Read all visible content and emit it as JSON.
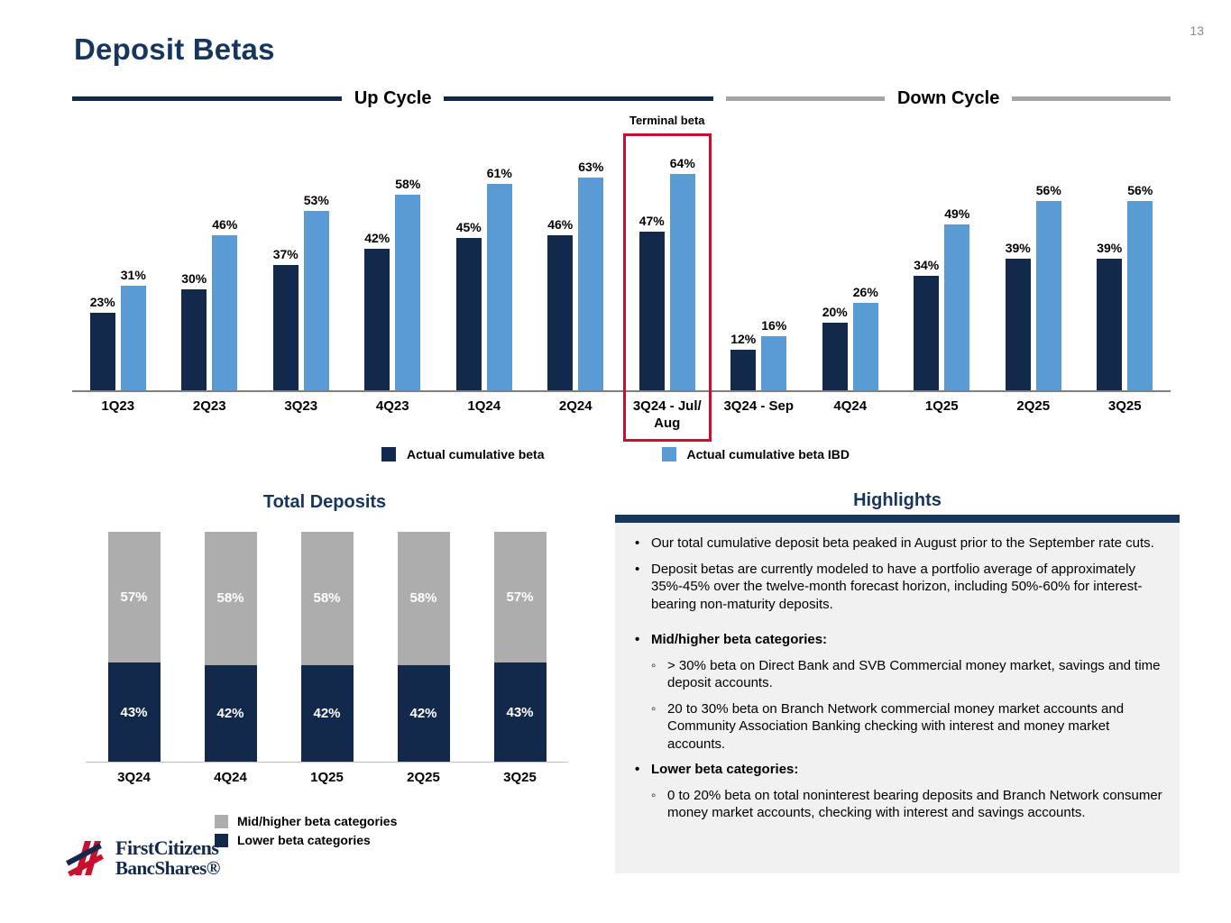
{
  "page": {
    "number": "13",
    "title": "Deposit Betas"
  },
  "colors": {
    "navy": "#13294B",
    "light_blue": "#5B9BD5",
    "gray": "#ADADAD",
    "red_box": "#C8102E",
    "title_navy": "#17365D",
    "cycle_gray": "#A6A6A6"
  },
  "cycles": {
    "up": "Up Cycle",
    "down": "Down Cycle"
  },
  "chart_data": [
    {
      "type": "bar",
      "title": "Deposit Betas - Up Cycle / Down Cycle",
      "categories": [
        "1Q23",
        "2Q23",
        "3Q23",
        "4Q23",
        "1Q24",
        "2Q24",
        "3Q24 - Jul/ Aug",
        "3Q24 - Sep",
        "4Q24",
        "1Q25",
        "2Q25",
        "3Q25"
      ],
      "series": [
        {
          "name": "Actual cumulative beta",
          "color": "#13294B",
          "values": [
            23,
            30,
            37,
            42,
            45,
            46,
            47,
            12,
            20,
            34,
            39,
            39
          ]
        },
        {
          "name": "Actual cumulative beta IBD",
          "color": "#5B9BD5",
          "values": [
            31,
            46,
            53,
            58,
            61,
            63,
            64,
            16,
            26,
            49,
            56,
            56
          ]
        }
      ],
      "value_suffix": "%",
      "ylim": [
        0,
        75
      ],
      "grid": false,
      "legend_position": "bottom",
      "annotations": [
        {
          "label": "Terminal beta",
          "category_index": 6
        }
      ],
      "cycle_split": {
        "up_categories": 7,
        "down_categories": 5
      }
    },
    {
      "type": "bar",
      "subtype": "stacked",
      "title": "Total Deposits",
      "categories": [
        "3Q24",
        "4Q24",
        "1Q25",
        "2Q25",
        "3Q25"
      ],
      "series": [
        {
          "name": "Lower beta categories",
          "color": "#13294B",
          "values": [
            43,
            42,
            42,
            42,
            43
          ]
        },
        {
          "name": "Mid/higher beta categories",
          "color": "#ADADAD",
          "values": [
            57,
            58,
            58,
            58,
            57
          ]
        }
      ],
      "value_suffix": "%",
      "ylim": [
        0,
        100
      ],
      "grid": false,
      "legend_position": "bottom"
    }
  ],
  "highlights": {
    "title": "Highlights",
    "items": [
      {
        "level": 1,
        "bold": false,
        "gap_before": false,
        "text": "Our total cumulative deposit beta peaked in August prior to the September rate cuts."
      },
      {
        "level": 1,
        "bold": false,
        "gap_before": false,
        "text": "Deposit betas are currently modeled to have a portfolio average of approximately 35%-45% over the twelve-month forecast horizon, including 50%-60% for interest-bearing non-maturity deposits."
      },
      {
        "level": 1,
        "bold": true,
        "gap_before": true,
        "text": "Mid/higher beta categories:"
      },
      {
        "level": 2,
        "bold": false,
        "gap_before": false,
        "text": "> 30% beta on Direct Bank and SVB Commercial money market, savings and time deposit accounts."
      },
      {
        "level": 2,
        "bold": false,
        "gap_before": false,
        "text": "20 to 30% beta on Branch Network commercial money market accounts and Community Association Banking checking with interest and money market accounts."
      },
      {
        "level": 1,
        "bold": true,
        "gap_before": false,
        "text": "Lower beta categories:"
      },
      {
        "level": 2,
        "bold": false,
        "gap_before": false,
        "text": "0 to 20% beta on total noninterest bearing deposits and Branch Network consumer money market accounts, checking with interest and savings accounts."
      }
    ]
  },
  "logo": {
    "line1": "FirstCitizens",
    "line2": "BancShares®"
  }
}
